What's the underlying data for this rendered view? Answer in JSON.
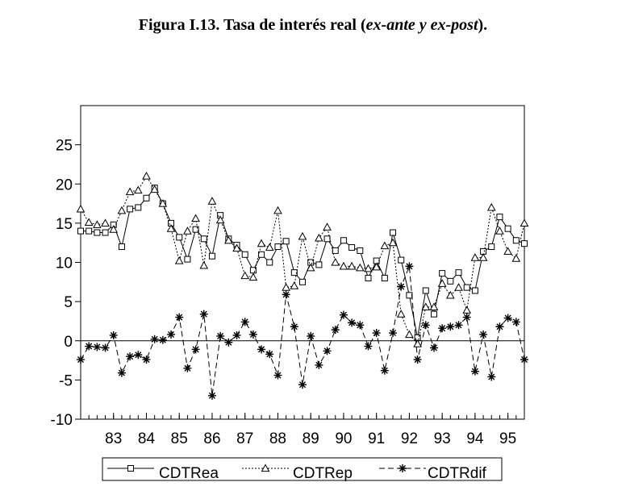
{
  "title": {
    "prefix": "Figura I.13. Tasa de interés real (",
    "italic": "ex-ante y ex-post",
    "suffix": ")."
  },
  "chart_data": {
    "type": "line",
    "x_start": 1982,
    "periods_per_year": 4,
    "xlim": [
      1982,
      1995.5
    ],
    "ylim": [
      -10,
      30
    ],
    "y_ticks": [
      -10,
      -5,
      0,
      5,
      10,
      15,
      20,
      25
    ],
    "x_tick_labels": [
      "83",
      "84",
      "85",
      "86",
      "87",
      "88",
      "89",
      "90",
      "91",
      "92",
      "93",
      "94",
      "95"
    ],
    "x_tick_positions": [
      1983,
      1984,
      1985,
      1986,
      1987,
      1988,
      1989,
      1990,
      1991,
      1992,
      1993,
      1994,
      1995
    ],
    "zero_line": true,
    "legend_position": "bottom",
    "series": [
      {
        "name": "CDTRea",
        "marker": "square",
        "dash": "solid",
        "values": [
          14,
          14,
          13.8,
          13.8,
          14.8,
          12,
          16.8,
          17,
          18.2,
          19.5,
          17.5,
          15,
          13.2,
          10.4,
          14.2,
          13,
          10.8,
          16,
          13,
          12.2,
          11,
          9,
          11,
          10,
          12,
          12.7,
          8.7,
          7.5,
          10,
          9.7,
          13,
          11.5,
          12.8,
          11.9,
          11.5,
          8,
          10.2,
          8,
          13.8,
          10.3,
          5.8,
          0.4,
          6.4,
          3.4,
          8.6,
          7.6,
          8.7,
          6.8,
          6.4,
          11.4,
          12,
          15.8,
          14.3,
          12.8,
          12.4
        ]
      },
      {
        "name": "CDTRep",
        "marker": "triangle",
        "dash": "dotted",
        "values": [
          16.8,
          15.1,
          14.8,
          15,
          14.2,
          16.6,
          19,
          19.2,
          21,
          19.3,
          17.5,
          14.3,
          10.2,
          14,
          15.6,
          9.6,
          17.8,
          15.4,
          12.8,
          11.8,
          8.3,
          8.1,
          12.4,
          11.9,
          16.6,
          6.8,
          7,
          13.3,
          9.3,
          13.1,
          14.5,
          10,
          9.5,
          9.5,
          9.3,
          9.2,
          9.4,
          12.1,
          12.5,
          3.4,
          0.8,
          -0.4,
          4.3,
          4.3,
          7.3,
          5.8,
          6.8,
          3.9,
          10.6,
          10.6,
          17,
          14,
          11.4,
          10.5,
          15
        ]
      },
      {
        "name": "CDTRdif",
        "marker": "star",
        "dash": "dashed",
        "values": [
          -2.4,
          -0.7,
          -0.8,
          -0.9,
          0.7,
          -4.1,
          -2,
          -1.8,
          -2.4,
          0.2,
          0.1,
          0.8,
          3,
          -3.5,
          -1.1,
          3.4,
          -7,
          0.6,
          -0.2,
          0.7,
          2.4,
          0.8,
          -1.1,
          -1.7,
          -4.4,
          5.9,
          1.8,
          -5.6,
          0.6,
          -3.1,
          -1.3,
          1.4,
          3.3,
          2.3,
          2,
          -0.7,
          1,
          -3.8,
          1,
          6.9,
          9.5,
          -2.4,
          2,
          -0.9,
          1.6,
          1.8,
          2,
          3,
          -3.9,
          0.8,
          -4.6,
          1.8,
          2.9,
          2.4,
          -2.4
        ]
      }
    ]
  }
}
